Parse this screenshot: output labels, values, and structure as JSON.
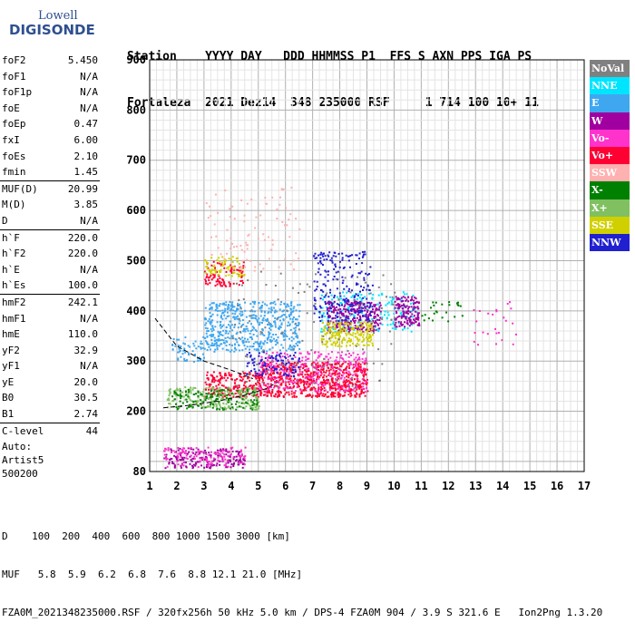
{
  "logo": {
    "line1": "Lowell",
    "line2": "DIGISONDE"
  },
  "header": {
    "row1": "Station    YYYY DAY   DDD HHMMSS P1  FFS S AXN PPS IGA PS",
    "row2": "Fortaleza  2021 Dez14  348 235000 RSF     1 714 100 10+ 11"
  },
  "params": [
    [
      {
        "k": "foF2",
        "v": "5.450"
      },
      {
        "k": "foF1",
        "v": "N/A"
      },
      {
        "k": "foF1p",
        "v": "N/A"
      },
      {
        "k": "foE",
        "v": "N/A"
      },
      {
        "k": "foEp",
        "v": "0.47"
      },
      {
        "k": "fxI",
        "v": "6.00"
      },
      {
        "k": "foEs",
        "v": "2.10"
      },
      {
        "k": "fmin",
        "v": "1.45"
      }
    ],
    [
      {
        "k": "MUF(D)",
        "v": "20.99"
      },
      {
        "k": "M(D)",
        "v": "3.85"
      },
      {
        "k": "D",
        "v": "N/A"
      }
    ],
    [
      {
        "k": "h`F",
        "v": "220.0"
      },
      {
        "k": "h`F2",
        "v": "220.0"
      },
      {
        "k": "h`E",
        "v": "N/A"
      },
      {
        "k": "h`Es",
        "v": "100.0"
      }
    ],
    [
      {
        "k": "hmF2",
        "v": "242.1"
      },
      {
        "k": "hmF1",
        "v": "N/A"
      },
      {
        "k": "hmE",
        "v": "110.0"
      },
      {
        "k": "yF2",
        "v": "32.9"
      },
      {
        "k": "yF1",
        "v": "N/A"
      },
      {
        "k": "yE",
        "v": "20.0"
      },
      {
        "k": "B0",
        "v": "30.5"
      },
      {
        "k": "B1",
        "v": "2.74"
      }
    ],
    [
      {
        "k": "C-level",
        "v": "44"
      }
    ]
  ],
  "auto": {
    "line1": "Auto:",
    "line2": "Artist5",
    "line3": "500200"
  },
  "legend": [
    {
      "label": "NoVal",
      "color": "#808080"
    },
    {
      "label": "NNE",
      "color": "#00e5ff"
    },
    {
      "label": "E",
      "color": "#3fa7f0"
    },
    {
      "label": "W",
      "color": "#a000a0"
    },
    {
      "label": "Vo-",
      "color": "#ff33cc"
    },
    {
      "label": "Vo+",
      "color": "#ff0033"
    },
    {
      "label": "SSW",
      "color": "#ffb0b0"
    },
    {
      "label": "X-",
      "color": "#008000"
    },
    {
      "label": "X+",
      "color": "#80c060"
    },
    {
      "label": "SSE",
      "color": "#d0d000"
    },
    {
      "label": "NNW",
      "color": "#2020d0"
    }
  ],
  "bottom": {
    "d_row": "D    100  200  400  600  800 1000 1500 3000 [km]",
    "muf_row": "MUF   5.8  5.9  6.2  6.8  7.6  8.8 12.1 21.0 [MHz]",
    "file_row": "FZA0M_2021348235000.RSF / 320fx256h 50 kHz 5.0 km / DPS-4 FZA0M 904 / 3.9 S 321.6 E   Ion2Png 1.3.20"
  },
  "chart_data": {
    "type": "scatter",
    "title": "",
    "xlabel": "",
    "ylabel": "",
    "xlim": [
      1,
      17
    ],
    "ylim": [
      80,
      900
    ],
    "x_ticks": [
      1,
      2,
      3,
      4,
      5,
      6,
      7,
      8,
      9,
      10,
      11,
      12,
      13,
      14,
      15,
      16,
      17
    ],
    "y_ticks": [
      80,
      200,
      300,
      400,
      500,
      600,
      700,
      800,
      900
    ],
    "grid": true,
    "legend_position": "right",
    "clusters": [
      {
        "name": "Vo+",
        "color": "#ff0033",
        "x": [
          5.0,
          9.0
        ],
        "y": [
          230,
          300
        ],
        "n": 700
      },
      {
        "name": "Vo+",
        "color": "#ff0033",
        "x": [
          3.0,
          5.0
        ],
        "y": [
          230,
          280
        ],
        "n": 200
      },
      {
        "name": "Vo-",
        "color": "#ff33cc",
        "x": [
          5.0,
          9.0
        ],
        "y": [
          240,
          320
        ],
        "n": 300
      },
      {
        "name": "X+",
        "color": "#80c060",
        "x": [
          1.6,
          5.0
        ],
        "y": [
          205,
          250
        ],
        "n": 220
      },
      {
        "name": "X-",
        "color": "#008000",
        "x": [
          1.8,
          5.0
        ],
        "y": [
          205,
          245
        ],
        "n": 120
      },
      {
        "name": "E",
        "color": "#3fa7f0",
        "x": [
          3.0,
          6.5
        ],
        "y": [
          320,
          420
        ],
        "n": 550
      },
      {
        "name": "E",
        "color": "#3fa7f0",
        "x": [
          1.8,
          3.0
        ],
        "y": [
          300,
          350
        ],
        "n": 60
      },
      {
        "name": "NNE",
        "color": "#00e5ff",
        "x": [
          7.2,
          10.8
        ],
        "y": [
          360,
          440
        ],
        "n": 200
      },
      {
        "name": "W",
        "color": "#a000a0",
        "x": [
          7.5,
          9.5
        ],
        "y": [
          360,
          420
        ],
        "n": 260
      },
      {
        "name": "W",
        "color": "#a000a0",
        "x": [
          10.0,
          10.9
        ],
        "y": [
          370,
          430
        ],
        "n": 140
      },
      {
        "name": "SSE",
        "color": "#d0d000",
        "x": [
          7.3,
          9.2
        ],
        "y": [
          330,
          380
        ],
        "n": 200
      },
      {
        "name": "NNW",
        "color": "#2020d0",
        "x": [
          7.0,
          9.2
        ],
        "y": [
          380,
          520
        ],
        "n": 220
      },
      {
        "name": "NNW",
        "color": "#2020d0",
        "x": [
          4.5,
          6.5
        ],
        "y": [
          270,
          320
        ],
        "n": 90
      },
      {
        "name": "Vo+",
        "color": "#ff0033",
        "x": [
          3.0,
          4.5
        ],
        "y": [
          450,
          500
        ],
        "n": 90
      },
      {
        "name": "SSE",
        "color": "#d0d000",
        "x": [
          3.0,
          4.5
        ],
        "y": [
          470,
          510
        ],
        "n": 70
      },
      {
        "name": "SSW",
        "color": "#ffb0b0",
        "x": [
          3.0,
          6.5
        ],
        "y": [
          480,
          650
        ],
        "n": 90
      },
      {
        "name": "W",
        "color": "#a000a0",
        "x": [
          1.5,
          4.5
        ],
        "y": [
          88,
          128
        ],
        "n": 180
      },
      {
        "name": "Vo-",
        "color": "#ff33cc",
        "x": [
          1.5,
          4.5
        ],
        "y": [
          90,
          130
        ],
        "n": 120
      },
      {
        "name": "X-",
        "color": "#008000",
        "x": [
          11.0,
          12.5
        ],
        "y": [
          380,
          420
        ],
        "n": 25
      },
      {
        "name": "Vo-",
        "color": "#ff33cc",
        "x": [
          12.5,
          14.5
        ],
        "y": [
          330,
          420
        ],
        "n": 25
      },
      {
        "name": "NoVal",
        "color": "#808080",
        "x": [
          4.0,
          10.0
        ],
        "y": [
          250,
          480
        ],
        "n": 120
      }
    ],
    "dashed_curves": [
      {
        "x": [
          1.2,
          2.0,
          3.0,
          4.0,
          4.8
        ],
        "y": [
          385,
          330,
          300,
          282,
          265
        ]
      },
      {
        "x": [
          1.5,
          2.5,
          3.5,
          4.5,
          5.3,
          5.7
        ],
        "y": [
          207,
          212,
          220,
          232,
          245,
          258
        ]
      }
    ]
  }
}
